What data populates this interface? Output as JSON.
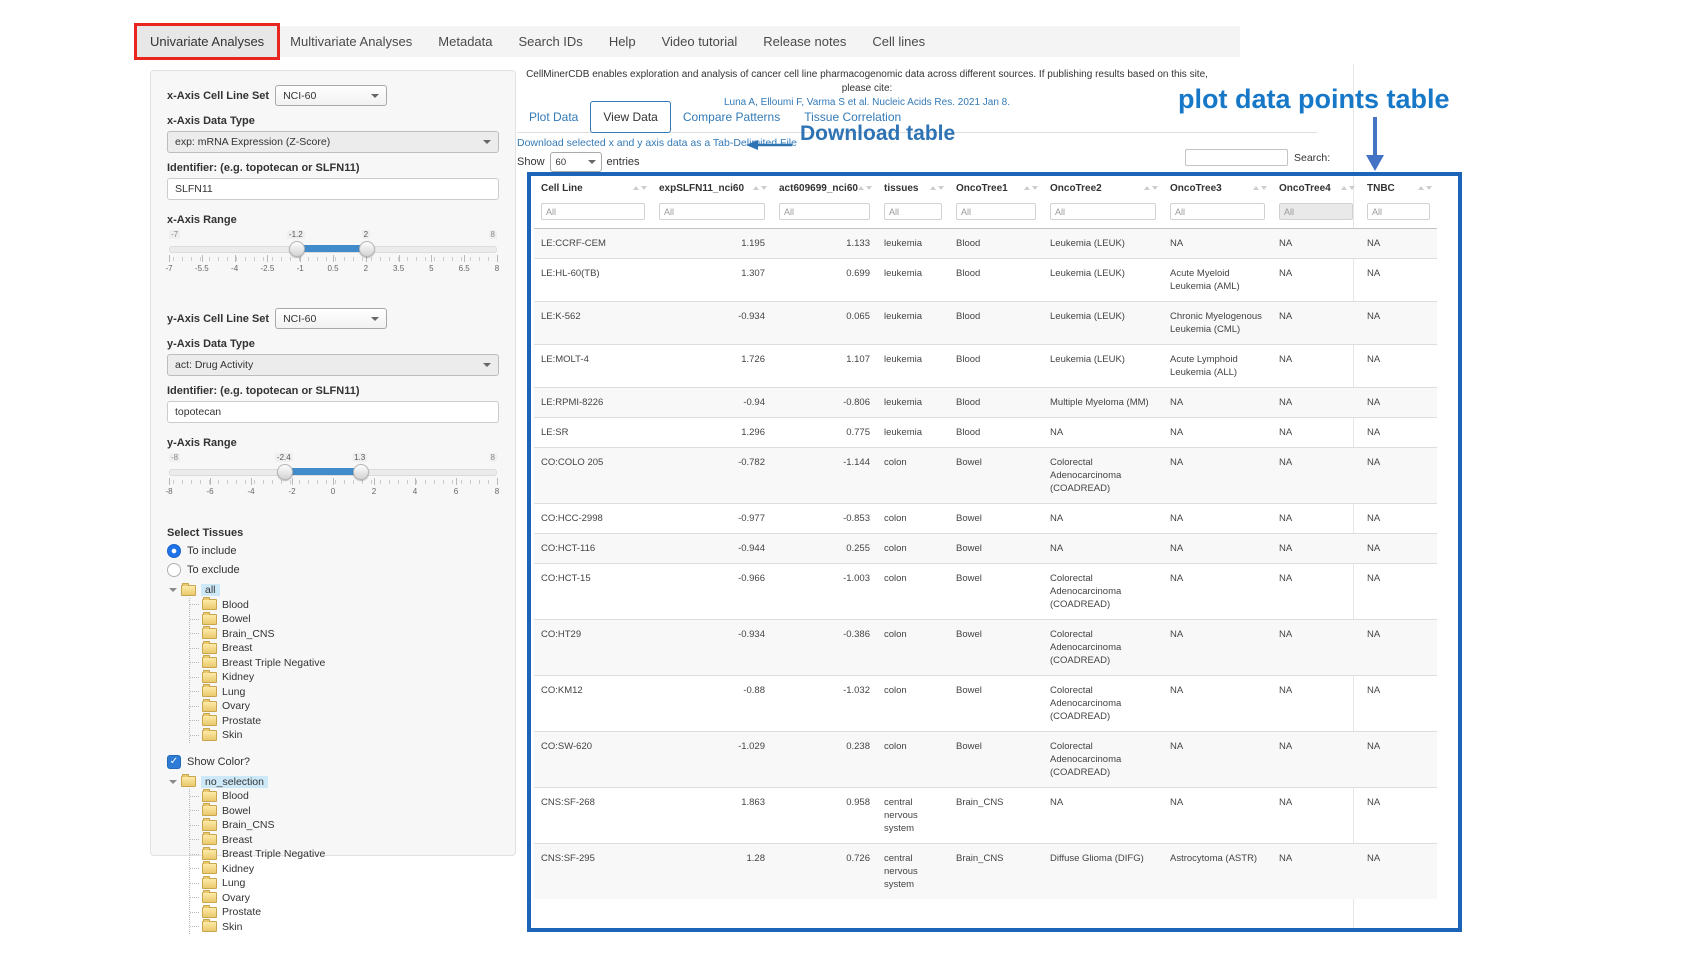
{
  "nav": {
    "items": [
      {
        "label": "Univariate Analyses",
        "active": true,
        "boxed": true
      },
      {
        "label": "Multivariate Analyses",
        "active": false
      },
      {
        "label": "Metadata",
        "active": false
      },
      {
        "label": "Search IDs",
        "active": false
      },
      {
        "label": "Help",
        "active": false
      },
      {
        "label": "Video tutorial",
        "active": false
      },
      {
        "label": "Release notes",
        "active": false
      },
      {
        "label": "Cell lines",
        "active": false
      }
    ]
  },
  "sidebar": {
    "x_axis": {
      "cell_line_set_label": "x-Axis Cell Line Set",
      "cell_line_set_value": "NCI-60",
      "data_type_label": "x-Axis Data Type",
      "data_type_value": "exp: mRNA Expression (Z-Score)",
      "identifier_label": "Identifier: (e.g. topotecan or SLFN11)",
      "identifier_value": "SLFN11",
      "range_label": "x-Axis Range",
      "range": {
        "min": -7,
        "max": 8,
        "low": -1.2,
        "high": 2,
        "min_label": "-7",
        "max_label": "8",
        "low_label": "-1.2",
        "high_label": "2",
        "ticks": [
          "-7",
          "-5.5",
          "-4",
          "-2.5",
          "-1",
          "0.5",
          "2",
          "3.5",
          "5",
          "6.5",
          "8"
        ]
      }
    },
    "y_axis": {
      "cell_line_set_label": "y-Axis Cell Line Set",
      "cell_line_set_value": "NCI-60",
      "data_type_label": "y-Axis Data Type",
      "data_type_value": "act: Drug Activity",
      "identifier_label": "Identifier: (e.g. topotecan or SLFN11)",
      "identifier_value": "topotecan",
      "range_label": "y-Axis Range",
      "range": {
        "min": -8,
        "max": 8,
        "low": -2.4,
        "high": 1.3,
        "min_label": "-8",
        "max_label": "8",
        "low_label": "-2.4",
        "high_label": "1.3",
        "ticks": [
          "-8",
          "-6",
          "-4",
          "-2",
          "0",
          "2",
          "4",
          "6",
          "8"
        ]
      }
    },
    "select_tissues_label": "Select Tissues",
    "radios": [
      {
        "label": "To include",
        "selected": true
      },
      {
        "label": "To exclude",
        "selected": false
      }
    ],
    "tree_include": {
      "root": "all",
      "children": [
        "Blood",
        "Bowel",
        "Brain_CNS",
        "Breast",
        "Breast Triple Negative",
        "Kidney",
        "Lung",
        "Ovary",
        "Prostate",
        "Skin"
      ]
    },
    "show_color_label": "Show Color?",
    "show_color_checked": true,
    "tree_color": {
      "root": "no_selection",
      "children": [
        "Blood",
        "Bowel",
        "Brain_CNS",
        "Breast",
        "Breast Triple Negative",
        "Kidney",
        "Lung",
        "Ovary",
        "Prostate",
        "Skin"
      ]
    }
  },
  "main": {
    "citation_line1": "CellMinerCDB enables exploration and analysis of cancer cell line pharmacogenomic data across different sources. If publishing results based on this site, please cite:",
    "citation_line2": "Luna A, Elloumi F, Varma S et al. Nucleic Acids Res. 2021 Jan 8.",
    "tabs": [
      {
        "label": "Plot Data",
        "active": false
      },
      {
        "label": "View Data",
        "active": true
      },
      {
        "label": "Compare Patterns",
        "active": false
      },
      {
        "label": "Tissue Correlation",
        "active": false
      }
    ],
    "download_link": "Download selected x and y axis data as a Tab-Delimited File",
    "show_label": "Show",
    "entries_value": "60",
    "entries_label": "entries",
    "search_label": "Search:",
    "search_value": "",
    "table": {
      "filter_placeholder": "All",
      "columns": [
        {
          "label": "Cell Line"
        },
        {
          "label": "expSLFN11_nci60",
          "align": "right"
        },
        {
          "label": "act609699_nci60",
          "align": "right"
        },
        {
          "label": "tissues"
        },
        {
          "label": "OncoTree1"
        },
        {
          "label": "OncoTree2"
        },
        {
          "label": "OncoTree3"
        },
        {
          "label": "OncoTree4",
          "filter_disabled": true
        },
        {
          "label": "TNBC"
        }
      ],
      "rows": [
        [
          "LE:CCRF-CEM",
          "1.195",
          "1.133",
          "leukemia",
          "Blood",
          "Leukemia (LEUK)",
          "NA",
          "NA",
          "NA"
        ],
        [
          "LE:HL-60(TB)",
          "1.307",
          "0.699",
          "leukemia",
          "Blood",
          "Leukemia (LEUK)",
          "Acute Myeloid Leukemia (AML)",
          "NA",
          "NA"
        ],
        [
          "LE:K-562",
          "-0.934",
          "0.065",
          "leukemia",
          "Blood",
          "Leukemia (LEUK)",
          "Chronic Myelogenous Leukemia (CML)",
          "NA",
          "NA"
        ],
        [
          "LE:MOLT-4",
          "1.726",
          "1.107",
          "leukemia",
          "Blood",
          "Leukemia (LEUK)",
          "Acute Lymphoid Leukemia (ALL)",
          "NA",
          "NA"
        ],
        [
          "LE:RPMI-8226",
          "-0.94",
          "-0.806",
          "leukemia",
          "Blood",
          "Multiple Myeloma (MM)",
          "NA",
          "NA",
          "NA"
        ],
        [
          "LE:SR",
          "1.296",
          "0.775",
          "leukemia",
          "Blood",
          "NA",
          "NA",
          "NA",
          "NA"
        ],
        [
          "CO:COLO 205",
          "-0.782",
          "-1.144",
          "colon",
          "Bowel",
          "Colorectal Adenocarcinoma (COADREAD)",
          "NA",
          "NA",
          "NA"
        ],
        [
          "CO:HCC-2998",
          "-0.977",
          "-0.853",
          "colon",
          "Bowel",
          "NA",
          "NA",
          "NA",
          "NA"
        ],
        [
          "CO:HCT-116",
          "-0.944",
          "0.255",
          "colon",
          "Bowel",
          "NA",
          "NA",
          "NA",
          "NA"
        ],
        [
          "CO:HCT-15",
          "-0.966",
          "-1.003",
          "colon",
          "Bowel",
          "Colorectal Adenocarcinoma (COADREAD)",
          "NA",
          "NA",
          "NA"
        ],
        [
          "CO:HT29",
          "-0.934",
          "-0.386",
          "colon",
          "Bowel",
          "Colorectal Adenocarcinoma (COADREAD)",
          "NA",
          "NA",
          "NA"
        ],
        [
          "CO:KM12",
          "-0.88",
          "-1.032",
          "colon",
          "Bowel",
          "Colorectal Adenocarcinoma (COADREAD)",
          "NA",
          "NA",
          "NA"
        ],
        [
          "CO:SW-620",
          "-1.029",
          "0.238",
          "colon",
          "Bowel",
          "Colorectal Adenocarcinoma (COADREAD)",
          "NA",
          "NA",
          "NA"
        ],
        [
          "CNS:SF-268",
          "1.863",
          "0.958",
          "central nervous system",
          "Brain_CNS",
          "NA",
          "NA",
          "NA",
          "NA"
        ],
        [
          "CNS:SF-295",
          "1.28",
          "0.726",
          "central nervous system",
          "Brain_CNS",
          "Diffuse Glioma (DIFG)",
          "Astrocytoma (ASTR)",
          "NA",
          "NA"
        ]
      ]
    }
  },
  "annotations": {
    "download_table": "Download table",
    "plot_table": "plot data points table"
  },
  "colors": {
    "red_box": "#e8251f",
    "table_border_blue": "#1c64b8",
    "download_annotation_blue": "#2e74b5",
    "plot_annotation_blue": "#1878c8",
    "link_blue": "#337ab7",
    "slider_fill_blue": "#428bca"
  },
  "icons": {
    "sort": "sort-arrows-icon",
    "caret": "chevron-down-icon",
    "folder": "folder-icon",
    "left_arrow": "left-arrow-icon",
    "down_arrow": "down-arrow-icon"
  }
}
